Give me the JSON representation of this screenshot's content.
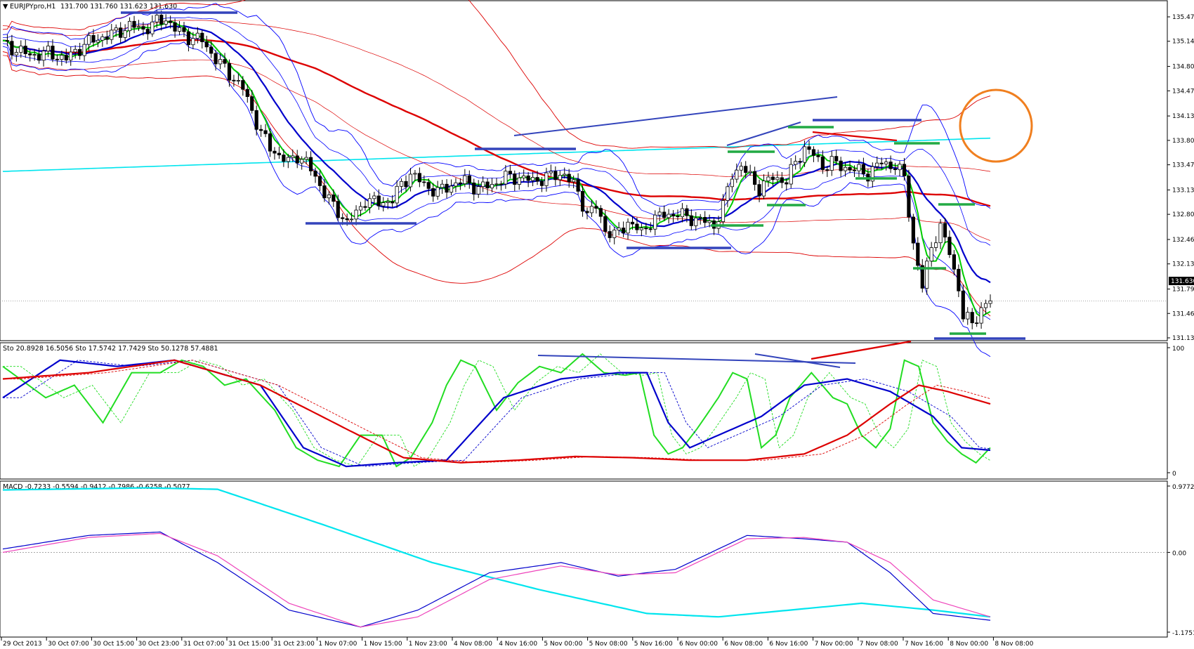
{
  "header": {
    "symbol": "EURJPYpro,H1",
    "ohlc": "131.700 131.760 131.623 131.630"
  },
  "stoch_header": "Sto 20.8928 16.5056  Sto 17.5742 17.7429  Sto 50.1278 57.4881",
  "macd_header": "MACD -0.7233 -0.5594 -0.9412 -0.7986 -0.6258 -0.5077",
  "current_price_label": "131.630",
  "colors": {
    "bull_body": "#ffffff",
    "bear_body": "#000000",
    "ma_fast": "#00cc00",
    "ma_mid": "#0000cc",
    "ma_slow": "#dd0000",
    "bb_fast": "#0000ff",
    "bb_slow": "#ff0000",
    "cyan": "#00e5ee",
    "annotation_circle": "#f07f1f",
    "support_blue": "#3344bb",
    "support_green": "#22aa44"
  },
  "chart_data": [
    {
      "type": "candlestick",
      "title": "EURJPYpro,H1",
      "ylim": [
        131.0,
        135.7
      ],
      "y_ticks": [
        "135.470",
        "135.140",
        "134.800",
        "134.470",
        "134.130",
        "133.800",
        "133.470",
        "133.130",
        "132.800",
        "132.460",
        "132.130",
        "131.790",
        "131.460",
        "131.130"
      ],
      "x_ticks": [
        "29 Oct 2013",
        "30 Oct 07:00",
        "30 Oct 15:00",
        "30 Oct 23:00",
        "31 Oct 07:00",
        "31 Oct 15:00",
        "31 Oct 23:00",
        "1 Nov 07:00",
        "1 Nov 15:00",
        "1 Nov 23:00",
        "4 Nov 08:00",
        "4 Nov 16:00",
        "5 Nov 00:00",
        "5 Nov 08:00",
        "5 Nov 16:00",
        "6 Nov 00:00",
        "6 Nov 08:00",
        "6 Nov 16:00",
        "7 Nov 00:00",
        "7 Nov 08:00",
        "7 Nov 16:00",
        "8 Nov 00:00",
        "8 Nov 08:00"
      ],
      "close_path": [
        [
          0,
          135.1
        ],
        [
          6,
          134.95
        ],
        [
          10,
          134.98
        ],
        [
          14,
          134.9
        ],
        [
          18,
          135.1
        ],
        [
          22,
          135.2
        ],
        [
          25,
          135.25
        ],
        [
          28,
          135.35
        ],
        [
          31,
          135.3
        ],
        [
          34,
          135.4
        ],
        [
          36,
          135.45
        ],
        [
          38,
          135.3
        ],
        [
          41,
          135.2
        ],
        [
          44,
          135.15
        ],
        [
          47,
          134.9
        ],
        [
          50,
          134.7
        ],
        [
          53,
          134.5
        ],
        [
          55,
          134.2
        ],
        [
          57,
          133.9
        ],
        [
          59,
          133.7
        ],
        [
          61,
          133.6
        ],
        [
          63,
          133.5
        ],
        [
          65,
          133.6
        ],
        [
          67,
          133.5
        ],
        [
          70,
          133.2
        ],
        [
          73,
          132.9
        ],
        [
          76,
          132.7
        ],
        [
          78,
          132.8
        ],
        [
          80,
          133.0
        ],
        [
          83,
          132.95
        ],
        [
          86,
          133.0
        ],
        [
          88,
          133.2
        ],
        [
          90,
          133.35
        ],
        [
          93,
          133.2
        ],
        [
          96,
          133.1
        ],
        [
          99,
          133.2
        ],
        [
          102,
          133.25
        ],
        [
          105,
          133.15
        ],
        [
          108,
          133.2
        ],
        [
          111,
          133.3
        ],
        [
          114,
          133.3
        ],
        [
          117,
          133.25
        ],
        [
          120,
          133.3
        ],
        [
          124,
          133.35
        ],
        [
          127,
          133.1
        ],
        [
          129,
          132.8
        ],
        [
          131,
          132.9
        ],
        [
          133,
          132.6
        ],
        [
          135,
          132.5
        ],
        [
          138,
          132.7
        ],
        [
          141,
          132.55
        ],
        [
          143,
          132.7
        ],
        [
          146,
          132.8
        ],
        [
          149,
          132.8
        ],
        [
          152,
          132.75
        ],
        [
          155,
          132.7
        ],
        [
          157,
          132.65
        ],
        [
          159,
          132.9
        ],
        [
          161,
          133.35
        ],
        [
          163,
          133.45
        ],
        [
          165,
          133.3
        ],
        [
          167,
          133.15
        ],
        [
          170,
          133.3
        ],
        [
          173,
          133.25
        ],
        [
          175,
          133.5
        ],
        [
          177,
          133.7
        ],
        [
          179,
          133.6
        ],
        [
          181,
          133.45
        ],
        [
          183,
          133.5
        ],
        [
          185,
          133.45
        ],
        [
          188,
          133.4
        ],
        [
          191,
          133.35
        ],
        [
          194,
          133.5
        ],
        [
          197,
          133.45
        ],
        [
          199,
          133.3
        ],
        [
          201,
          132.4
        ],
        [
          203,
          131.8
        ],
        [
          205,
          132.4
        ],
        [
          207,
          132.6
        ],
        [
          209,
          132.3
        ],
        [
          211,
          131.8
        ],
        [
          212,
          131.4
        ],
        [
          214,
          131.35
        ],
        [
          216,
          131.5
        ],
        [
          218,
          131.63
        ]
      ],
      "last_close": 131.63
    },
    {
      "type": "line",
      "title": "Stochastic",
      "ylim": [
        0,
        100
      ],
      "y_ticks": [
        "100",
        "0"
      ],
      "series": [
        {
          "color": "green",
          "values": [
            [
              0,
              85
            ],
            [
              6,
              60
            ],
            [
              10,
              70
            ],
            [
              14,
              40
            ],
            [
              18,
              80
            ],
            [
              22,
              80
            ],
            [
              25,
              90
            ],
            [
              28,
              85
            ],
            [
              31,
              70
            ],
            [
              34,
              75
            ],
            [
              38,
              50
            ],
            [
              41,
              20
            ],
            [
              44,
              10
            ],
            [
              47,
              5
            ],
            [
              50,
              30
            ],
            [
              53,
              30
            ],
            [
              55,
              5
            ],
            [
              57,
              12
            ],
            [
              60,
              40
            ],
            [
              62,
              70
            ],
            [
              64,
              90
            ],
            [
              66,
              85
            ],
            [
              69,
              50
            ],
            [
              72,
              72
            ],
            [
              75,
              85
            ],
            [
              78,
              80
            ],
            [
              81,
              95
            ],
            [
              84,
              80
            ],
            [
              87,
              78
            ],
            [
              89,
              80
            ],
            [
              91,
              30
            ],
            [
              93,
              15
            ],
            [
              95,
              20
            ],
            [
              97,
              35
            ],
            [
              100,
              60
            ],
            [
              102,
              80
            ],
            [
              104,
              75
            ],
            [
              106,
              20
            ],
            [
              108,
              30
            ],
            [
              110,
              60
            ],
            [
              113,
              80
            ],
            [
              116,
              60
            ],
            [
              118,
              55
            ],
            [
              120,
              30
            ],
            [
              122,
              20
            ],
            [
              124,
              35
            ],
            [
              126,
              90
            ],
            [
              128,
              85
            ],
            [
              130,
              40
            ],
            [
              132,
              25
            ],
            [
              134,
              15
            ],
            [
              136,
              8
            ],
            [
              138,
              20
            ]
          ]
        },
        {
          "color": "blue",
          "values": [
            [
              0,
              60
            ],
            [
              8,
              90
            ],
            [
              16,
              85
            ],
            [
              24,
              90
            ],
            [
              30,
              80
            ],
            [
              36,
              70
            ],
            [
              42,
              20
            ],
            [
              48,
              5
            ],
            [
              55,
              8
            ],
            [
              62,
              10
            ],
            [
              70,
              60
            ],
            [
              78,
              75
            ],
            [
              86,
              80
            ],
            [
              90,
              80
            ],
            [
              93,
              40
            ],
            [
              96,
              20
            ],
            [
              100,
              30
            ],
            [
              106,
              45
            ],
            [
              112,
              70
            ],
            [
              118,
              75
            ],
            [
              124,
              65
            ],
            [
              130,
              45
            ],
            [
              134,
              20
            ],
            [
              138,
              18
            ]
          ]
        },
        {
          "color": "red",
          "values": [
            [
              0,
              75
            ],
            [
              12,
              80
            ],
            [
              24,
              90
            ],
            [
              36,
              70
            ],
            [
              48,
              35
            ],
            [
              56,
              12
            ],
            [
              64,
              8
            ],
            [
              72,
              10
            ],
            [
              80,
              13
            ],
            [
              88,
              12
            ],
            [
              96,
              10
            ],
            [
              104,
              10
            ],
            [
              112,
              15
            ],
            [
              118,
              30
            ],
            [
              124,
              55
            ],
            [
              128,
              70
            ],
            [
              132,
              65
            ],
            [
              138,
              55
            ]
          ]
        }
      ]
    },
    {
      "type": "line",
      "title": "MACD",
      "ylim": [
        -1.1751,
        0.9772
      ],
      "y_ticks": [
        "0.9772",
        "0.00",
        "-1.1751"
      ],
      "series": [
        {
          "color": "cyan",
          "values": [
            [
              0,
              0.92
            ],
            [
              20,
              0.95
            ],
            [
              30,
              0.93
            ],
            [
              45,
              0.4
            ],
            [
              60,
              -0.15
            ],
            [
              75,
              -0.55
            ],
            [
              90,
              -0.9
            ],
            [
              100,
              -0.95
            ],
            [
              110,
              -0.85
            ],
            [
              120,
              -0.75
            ],
            [
              130,
              -0.85
            ],
            [
              138,
              -0.95
            ]
          ]
        },
        {
          "color": "blue",
          "values": [
            [
              0,
              0.05
            ],
            [
              12,
              0.25
            ],
            [
              22,
              0.3
            ],
            [
              30,
              -0.15
            ],
            [
              40,
              -0.85
            ],
            [
              50,
              -1.1
            ],
            [
              58,
              -0.85
            ],
            [
              68,
              -0.3
            ],
            [
              78,
              -0.15
            ],
            [
              86,
              -0.35
            ],
            [
              94,
              -0.25
            ],
            [
              104,
              0.25
            ],
            [
              112,
              0.2
            ],
            [
              118,
              0.15
            ],
            [
              124,
              -0.3
            ],
            [
              130,
              -0.9
            ],
            [
              138,
              -1.0
            ]
          ]
        },
        {
          "color": "magenta",
          "values": [
            [
              0,
              0.0
            ],
            [
              12,
              0.22
            ],
            [
              22,
              0.28
            ],
            [
              30,
              -0.05
            ],
            [
              40,
              -0.75
            ],
            [
              50,
              -1.1
            ],
            [
              58,
              -0.95
            ],
            [
              68,
              -0.4
            ],
            [
              78,
              -0.2
            ],
            [
              86,
              -0.33
            ],
            [
              94,
              -0.3
            ],
            [
              104,
              0.2
            ],
            [
              112,
              0.22
            ],
            [
              118,
              0.15
            ],
            [
              124,
              -0.15
            ],
            [
              130,
              -0.7
            ],
            [
              138,
              -0.95
            ]
          ]
        }
      ]
    }
  ]
}
